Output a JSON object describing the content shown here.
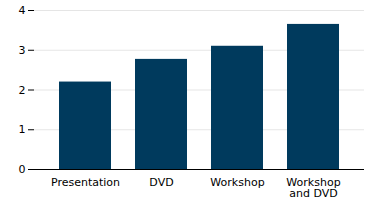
{
  "chart_data": {
    "type": "bar",
    "categories": [
      "Presentation",
      "DVD",
      "Workshop",
      "Workshop and DVD"
    ],
    "values": [
      2.2,
      2.77,
      3.1,
      3.65
    ],
    "color": "#003a5d",
    "ylim": [
      0,
      4
    ],
    "yticks": [
      0,
      1,
      2,
      3,
      4
    ],
    "grid": true
  }
}
